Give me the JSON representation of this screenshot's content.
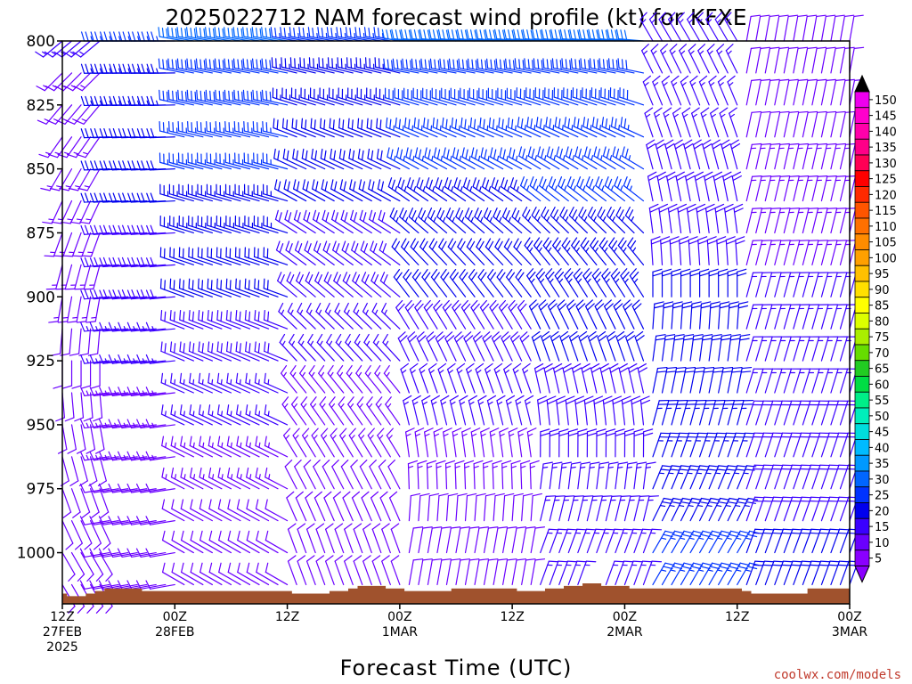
{
  "chart_data": {
    "type": "wind_profile",
    "title": "2025022712 NAM forecast wind profile (kt) for KFXE",
    "xlabel": "Forecast Time (UTC)",
    "credit": "coolwx.com/models",
    "y_axis": {
      "range": [
        800,
        1020
      ],
      "inverted": true,
      "ticks": [
        800,
        825,
        850,
        875,
        900,
        925,
        950,
        975,
        1000
      ]
    },
    "time_axis": {
      "start_hours": 0,
      "end_hours": 84,
      "ticks": [
        {
          "hour": 0,
          "lines": [
            "12Z",
            "27FEB",
            "2025"
          ]
        },
        {
          "hour": 12,
          "lines": [
            "00Z",
            "28FEB"
          ]
        },
        {
          "hour": 24,
          "lines": [
            "12Z",
            ""
          ]
        },
        {
          "hour": 36,
          "lines": [
            "00Z",
            "1MAR"
          ]
        },
        {
          "hour": 48,
          "lines": [
            "12Z",
            ""
          ]
        },
        {
          "hour": 60,
          "lines": [
            "00Z",
            "2MAR"
          ]
        },
        {
          "hour": 72,
          "lines": [
            "12Z",
            ""
          ]
        },
        {
          "hour": 84,
          "lines": [
            "00Z",
            "3MAR"
          ]
        }
      ]
    },
    "barb_levels_hPa": [
      800,
      812.5,
      825,
      837.5,
      850,
      862.5,
      875,
      887.5,
      900,
      912.5,
      925,
      937.5,
      950,
      962.5,
      975,
      987.5,
      1000,
      1012.5
    ],
    "barb_time_step_hours": 1,
    "wind_segments": [
      {
        "from_hour": 0,
        "to_hour": 4,
        "low_dir": 150,
        "low_speed": 10,
        "high_dir": 230,
        "high_speed": 15
      },
      {
        "from_hour": 5,
        "to_hour": 12,
        "low_dir": 260,
        "low_speed": 10,
        "high_dir": 270,
        "high_speed": 25
      },
      {
        "from_hour": 13,
        "to_hour": 24,
        "low_dir": 300,
        "low_speed": 10,
        "high_dir": 280,
        "high_speed": 30
      },
      {
        "from_hour": 25,
        "to_hour": 36,
        "low_dir": 340,
        "low_speed": 10,
        "high_dir": 280,
        "high_speed": 25
      },
      {
        "from_hour": 37,
        "to_hour": 50,
        "low_dir": 10,
        "low_speed": 10,
        "high_dir": 275,
        "high_speed": 30
      },
      {
        "from_hour": 51,
        "to_hour": 62,
        "low_dir": 20,
        "low_speed": 15,
        "high_dir": 275,
        "high_speed": 30
      },
      {
        "from_hour": 63,
        "to_hour": 72,
        "low_dir": 30,
        "low_speed": 25,
        "high_dir": 330,
        "high_speed": 15
      },
      {
        "from_hour": 73,
        "to_hour": 84,
        "low_dir": 20,
        "low_speed": 20,
        "high_dir": 10,
        "high_speed": 10
      }
    ],
    "surface_pressure_hPa": [
      1016,
      1017,
      1017,
      1016,
      1015,
      1014,
      1014,
      1014,
      1014,
      1015,
      1015,
      1015,
      1015,
      1015,
      1015,
      1015,
      1015,
      1015,
      1015,
      1015,
      1015,
      1015,
      1015,
      1015,
      1015,
      1016,
      1016,
      1016,
      1016,
      1015,
      1015,
      1014,
      1013,
      1013,
      1013,
      1014,
      1014,
      1015,
      1015,
      1015,
      1015,
      1015,
      1014,
      1014,
      1014,
      1014,
      1014,
      1014,
      1014,
      1015,
      1015,
      1015,
      1014,
      1014,
      1013,
      1013,
      1012,
      1012,
      1013,
      1013,
      1013,
      1014,
      1014,
      1014,
      1014,
      1014,
      1014,
      1014,
      1014,
      1014,
      1014,
      1014,
      1014,
      1015,
      1016,
      1016,
      1016,
      1016,
      1016,
      1016,
      1014,
      1014,
      1014,
      1014,
      1014
    ],
    "terrain_color": "#A0522D",
    "colorbar": {
      "values": [
        5,
        10,
        15,
        20,
        25,
        30,
        35,
        40,
        45,
        50,
        55,
        60,
        65,
        70,
        75,
        80,
        85,
        90,
        95,
        100,
        105,
        110,
        115,
        120,
        125,
        130,
        135,
        140,
        145,
        150
      ],
      "colors": [
        "#8A00FF",
        "#6A00FF",
        "#3A00FF",
        "#0000EE",
        "#0033FF",
        "#0066FF",
        "#0099FF",
        "#00BBFF",
        "#00DDDD",
        "#00EEBB",
        "#00EE88",
        "#00DD44",
        "#22CC22",
        "#66DD00",
        "#AAEE00",
        "#DDFF00",
        "#FFFF00",
        "#FFE000",
        "#FFC000",
        "#FFA000",
        "#FF8C00",
        "#FF7000",
        "#FF5500",
        "#FF2A00",
        "#FF0000",
        "#FF0055",
        "#FF0088",
        "#FF00AA",
        "#FF00CC",
        "#EE00EE"
      ],
      "top_arrow_color": "#000000",
      "bottom_arrow_color": "#8A00FF"
    }
  }
}
